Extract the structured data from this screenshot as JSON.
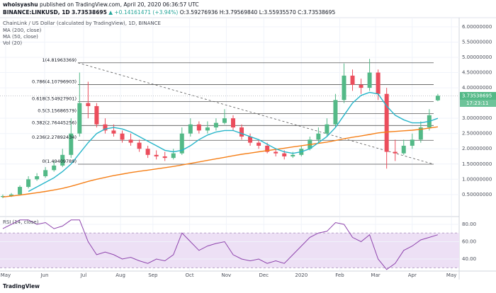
{
  "header": {
    "author": "whoisyashu",
    "published": "published on TradingView.com, April 20, 2020 06:36:57 UTC",
    "symbol": "BINANCE:LINKUSD, 1D",
    "change": "▲ +0.14161471 (+3.94%)",
    "ohlc": [
      "O:3.59276936",
      "H:3.79569840",
      "L:3.55935570",
      "C:3.73538695"
    ]
  },
  "chart_data": [
    {
      "type": "candlestick",
      "title": "ChainLink / US Dollar (calculated by TradingView), 1D, BINANCE",
      "volume_label": "Vol (20)",
      "last_price": 3.73538695,
      "countdown": "17:23:11",
      "up_color": "#53b987",
      "down_color": "#eb4d5c",
      "open": [
        0.42,
        0.45,
        0.5,
        0.75,
        1.0,
        1.1,
        1.3,
        1.45,
        1.8,
        2.5,
        3.5,
        3.4,
        2.8,
        2.6,
        2.5,
        2.3,
        2.2,
        2.0,
        1.8,
        1.75,
        1.7,
        1.85,
        2.5,
        2.8,
        2.6,
        2.7,
        2.85,
        3.0,
        2.7,
        2.4,
        2.2,
        2.1,
        1.9,
        1.85,
        1.75,
        1.8,
        2.0,
        2.3,
        2.5,
        2.8,
        3.6,
        4.4,
        4.1,
        4.0,
        4.5,
        3.8,
        1.9,
        1.85,
        2.1,
        2.3,
        2.7,
        3.59
      ],
      "high": [
        0.5,
        0.55,
        0.8,
        1.1,
        1.2,
        1.4,
        1.6,
        2.0,
        3.0,
        4.5,
        4.2,
        3.5,
        3.0,
        2.8,
        2.6,
        2.5,
        2.3,
        2.1,
        1.95,
        1.9,
        2.0,
        2.7,
        3.0,
        2.9,
        2.9,
        3.0,
        3.3,
        3.1,
        2.8,
        2.5,
        2.3,
        2.2,
        2.0,
        1.95,
        1.9,
        2.1,
        2.4,
        2.7,
        3.0,
        3.8,
        4.8,
        4.6,
        4.3,
        4.95,
        4.6,
        4.0,
        2.3,
        2.3,
        2.5,
        2.9,
        3.3,
        3.8
      ],
      "low": [
        0.38,
        0.42,
        0.48,
        0.7,
        0.95,
        1.05,
        1.25,
        1.4,
        1.7,
        2.4,
        3.0,
        2.7,
        2.5,
        2.4,
        2.2,
        2.1,
        1.9,
        1.7,
        1.65,
        1.6,
        1.65,
        1.8,
        2.4,
        2.5,
        2.5,
        2.6,
        2.8,
        2.6,
        2.3,
        2.1,
        2.0,
        1.85,
        1.75,
        1.65,
        1.7,
        1.75,
        1.95,
        2.2,
        2.4,
        2.7,
        3.5,
        3.9,
        3.8,
        3.9,
        3.6,
        1.35,
        1.6,
        1.8,
        2.0,
        2.2,
        2.6,
        3.56
      ],
      "close": [
        0.45,
        0.5,
        0.75,
        1.0,
        1.1,
        1.3,
        1.45,
        1.8,
        2.5,
        3.5,
        3.4,
        2.8,
        2.6,
        2.5,
        2.3,
        2.2,
        2.0,
        1.8,
        1.75,
        1.7,
        1.85,
        2.5,
        2.8,
        2.6,
        2.7,
        2.85,
        3.0,
        2.7,
        2.4,
        2.2,
        2.1,
        1.9,
        1.85,
        1.75,
        1.8,
        2.0,
        2.3,
        2.5,
        2.8,
        3.6,
        4.4,
        4.1,
        4.0,
        4.5,
        3.8,
        1.9,
        1.85,
        2.1,
        2.3,
        2.7,
        3.1,
        3.74
      ],
      "series": [
        {
          "name": "MA (200, close)",
          "color": "#f57f17",
          "values": [
            0.42,
            0.45,
            0.48,
            0.52,
            0.56,
            0.6,
            0.65,
            0.7,
            0.77,
            0.85,
            0.93,
            1.0,
            1.06,
            1.12,
            1.17,
            1.22,
            1.26,
            1.3,
            1.34,
            1.38,
            1.42,
            1.47,
            1.52,
            1.57,
            1.62,
            1.67,
            1.72,
            1.77,
            1.82,
            1.86,
            1.9,
            1.94,
            1.98,
            2.02,
            2.06,
            2.1,
            2.14,
            2.18,
            2.22,
            2.27,
            2.33,
            2.38,
            2.42,
            2.47,
            2.52,
            2.55,
            2.57,
            2.59,
            2.61,
            2.64,
            2.68,
            2.72
          ]
        },
        {
          "name": "MA (50, close)",
          "color": "#26b5c9",
          "values": [
            null,
            null,
            null,
            0.6,
            0.75,
            0.9,
            1.05,
            1.25,
            1.5,
            1.85,
            2.2,
            2.5,
            2.65,
            2.7,
            2.65,
            2.55,
            2.4,
            2.25,
            2.1,
            1.95,
            1.9,
            1.95,
            2.1,
            2.3,
            2.45,
            2.55,
            2.6,
            2.6,
            2.5,
            2.4,
            2.3,
            2.15,
            2.0,
            1.9,
            1.85,
            1.9,
            2.0,
            2.2,
            2.4,
            2.7,
            3.1,
            3.5,
            3.75,
            3.85,
            3.8,
            3.4,
            3.1,
            2.95,
            2.85,
            2.85,
            2.9,
            3.0
          ]
        }
      ],
      "fib_levels": [
        {
          "label": "1(4.81963369)",
          "value": 4.81963369
        },
        {
          "label": "0.786(4.10796903)",
          "value": 4.10796903
        },
        {
          "label": "0.618(3.54927901)",
          "value": 3.54927901
        },
        {
          "label": "0.5(3.15686579)",
          "value": 3.15686579
        },
        {
          "label": "0.382(2.76445256)",
          "value": 2.76445256
        },
        {
          "label": "0.236(2.27892434)",
          "value": 2.27892434
        },
        {
          "label": "0(1.49409789)",
          "value": 1.49409789
        }
      ],
      "xlim": [
        -0.33,
        53.5
      ],
      "xticks": [
        {
          "value": 0.33,
          "label": "May"
        },
        {
          "value": 4.9,
          "label": "Jun"
        },
        {
          "value": 9.47,
          "label": "Jul"
        },
        {
          "value": 13.8,
          "label": "Aug"
        },
        {
          "value": 17.6,
          "label": "Sep"
        },
        {
          "value": 21.9,
          "label": "Oct"
        },
        {
          "value": 26.2,
          "label": "Nov"
        },
        {
          "value": 30.6,
          "label": "Dec"
        },
        {
          "value": 35.0,
          "label": "2020"
        },
        {
          "value": 39.5,
          "label": "Feb"
        },
        {
          "value": 43.7,
          "label": "Mar"
        },
        {
          "value": 48.0,
          "label": "Apr"
        },
        {
          "value": 52.6,
          "label": "May"
        }
      ],
      "ylim": [
        -0.2,
        6.3
      ],
      "yticks": [
        {
          "value": 0.5,
          "label": "0.50000000"
        },
        {
          "value": 1.0,
          "label": "1.00000000"
        },
        {
          "value": 1.5,
          "label": "1.50000000"
        },
        {
          "value": 2.0,
          "label": "2.00000000"
        },
        {
          "value": 2.5,
          "label": "2.50000000"
        },
        {
          "value": 3.0,
          "label": "3.00000000"
        },
        {
          "value": 4.0,
          "label": "4.00000000"
        },
        {
          "value": 4.5,
          "label": "4.50000000"
        },
        {
          "value": 5.0,
          "label": "5.00000000"
        },
        {
          "value": 5.5,
          "label": "5.50000000"
        },
        {
          "value": 6.0,
          "label": "6.00000000"
        }
      ],
      "grid": true
    },
    {
      "type": "line",
      "title": "RSI (14, close)",
      "color": "#8e44ad",
      "band": [
        30,
        70
      ],
      "band_color": "#ede0f5",
      "values": [
        75,
        80,
        85,
        85,
        80,
        82,
        75,
        78,
        85,
        85,
        60,
        45,
        48,
        45,
        40,
        42,
        38,
        35,
        40,
        38,
        45,
        70,
        60,
        50,
        55,
        58,
        60,
        45,
        40,
        38,
        40,
        35,
        38,
        35,
        45,
        55,
        65,
        70,
        72,
        82,
        80,
        65,
        60,
        68,
        40,
        28,
        35,
        50,
        55,
        62,
        65,
        68
      ],
      "ylim": [
        27,
        87.3
      ],
      "yticks": [
        {
          "value": 40,
          "label": "40.00"
        },
        {
          "value": 60,
          "label": "60.00"
        },
        {
          "value": 80,
          "label": "80.00"
        }
      ]
    }
  ],
  "footer": {
    "brand": "TradingView"
  }
}
